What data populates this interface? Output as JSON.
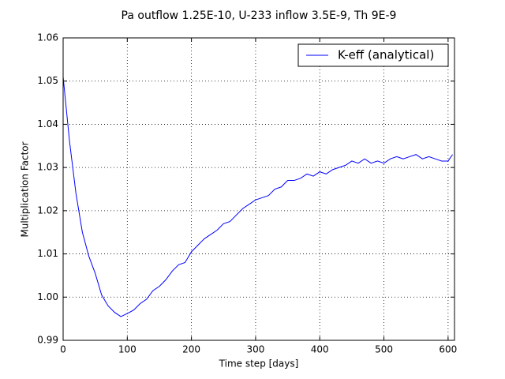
{
  "chart_data": {
    "type": "line",
    "title": "Pa outflow 1.25E-10, U-233 inflow 3.5E-9, Th 9E-9",
    "xlabel": "Time step [days]",
    "ylabel": "Multiplication Factor",
    "x": [
      0,
      10,
      20,
      30,
      40,
      50,
      60,
      70,
      80,
      90,
      100,
      110,
      120,
      130,
      140,
      150,
      160,
      170,
      180,
      190,
      200,
      210,
      220,
      230,
      240,
      250,
      260,
      270,
      280,
      290,
      300,
      310,
      320,
      330,
      340,
      350,
      360,
      370,
      380,
      390,
      400,
      410,
      420,
      430,
      440,
      450,
      460,
      470,
      480,
      490,
      500,
      510,
      520,
      530,
      540,
      550,
      560,
      570,
      580,
      590,
      600,
      607
    ],
    "series": [
      {
        "name": "K-eff (analytical)",
        "color": "#0000ff",
        "values": [
          1.051,
          1.036,
          1.024,
          1.015,
          1.0095,
          1.0055,
          1.0005,
          0.998,
          0.9965,
          0.9955,
          0.9962,
          0.997,
          0.9985,
          0.9995,
          1.0015,
          1.0025,
          1.004,
          1.006,
          1.0075,
          1.008,
          1.0105,
          1.012,
          1.0135,
          1.0145,
          1.0155,
          1.017,
          1.0175,
          1.019,
          1.0205,
          1.0215,
          1.0225,
          1.023,
          1.0235,
          1.025,
          1.0255,
          1.027,
          1.027,
          1.0275,
          1.0285,
          1.028,
          1.029,
          1.0285,
          1.0295,
          1.03,
          1.0305,
          1.0315,
          1.031,
          1.032,
          1.031,
          1.0315,
          1.031,
          1.032,
          1.0325,
          1.032,
          1.0325,
          1.033,
          1.032,
          1.0325,
          1.032,
          1.0315,
          1.0315,
          1.033
        ]
      }
    ],
    "xlim": [
      0,
      610
    ],
    "ylim": [
      0.99,
      1.06
    ],
    "xticks": [
      0,
      100,
      200,
      300,
      400,
      500,
      600
    ],
    "yticks": [
      0.99,
      {
        "value": 1,
        "label": "1.00"
      },
      1.01,
      1.02,
      1.03,
      1.04,
      1.05,
      1.06
    ],
    "grid": true,
    "legend": "upper right"
  }
}
